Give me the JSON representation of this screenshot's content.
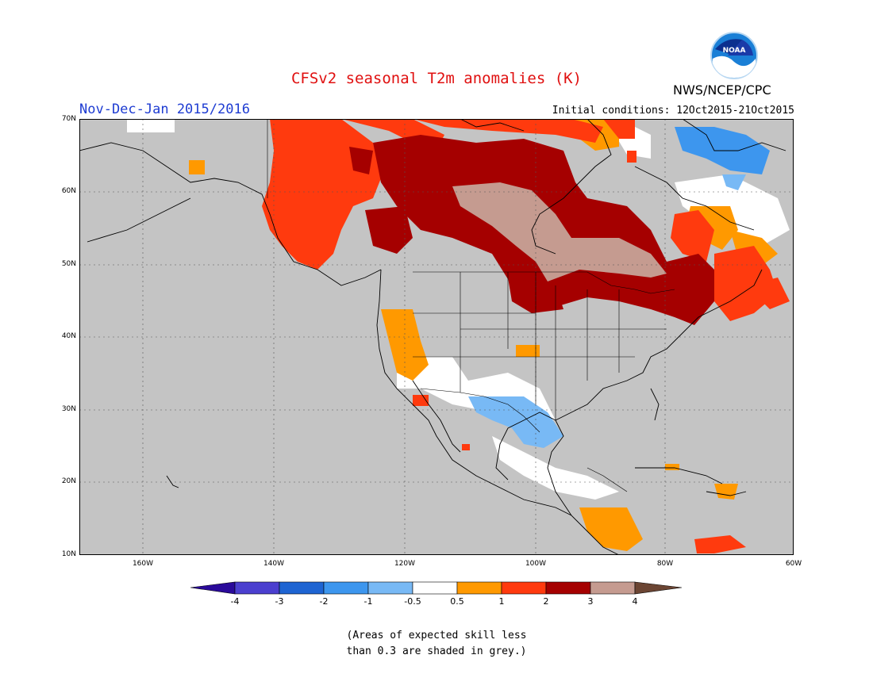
{
  "title": "CFSv2 seasonal T2m anomalies (K)",
  "period": "Nov-Dec-Jan 2015/2016",
  "initial_conditions": "Initial conditions: 12Oct2015-21Oct2015",
  "agency": "NWS/NCEP/CPC",
  "logo_text": "NOAA",
  "lat_labels": [
    "70N",
    "60N",
    "50N",
    "40N",
    "30N",
    "20N",
    "10N"
  ],
  "lon_labels": [
    "160W",
    "140W",
    "120W",
    "100W",
    "80W",
    "60W"
  ],
  "colorbar": {
    "ticks": [
      "-4",
      "-3",
      "-2",
      "-1",
      "-0.5",
      "0.5",
      "1",
      "2",
      "3",
      "4"
    ],
    "colors": [
      "#2a0a9a",
      "#4b3fcf",
      "#1e64d2",
      "#3d96ee",
      "#78b9f5",
      "#ffffff",
      "#ff9900",
      "#ff3a0e",
      "#a50000",
      "#c59b90",
      "#6b4533"
    ]
  },
  "colors": {
    "ocean_land_grey": "#c4c4c4",
    "white_near_normal": "#ffffff"
  },
  "note_line1": "(Areas of expected skill less",
  "note_line2": "than 0.3 are shaded in grey.)"
}
